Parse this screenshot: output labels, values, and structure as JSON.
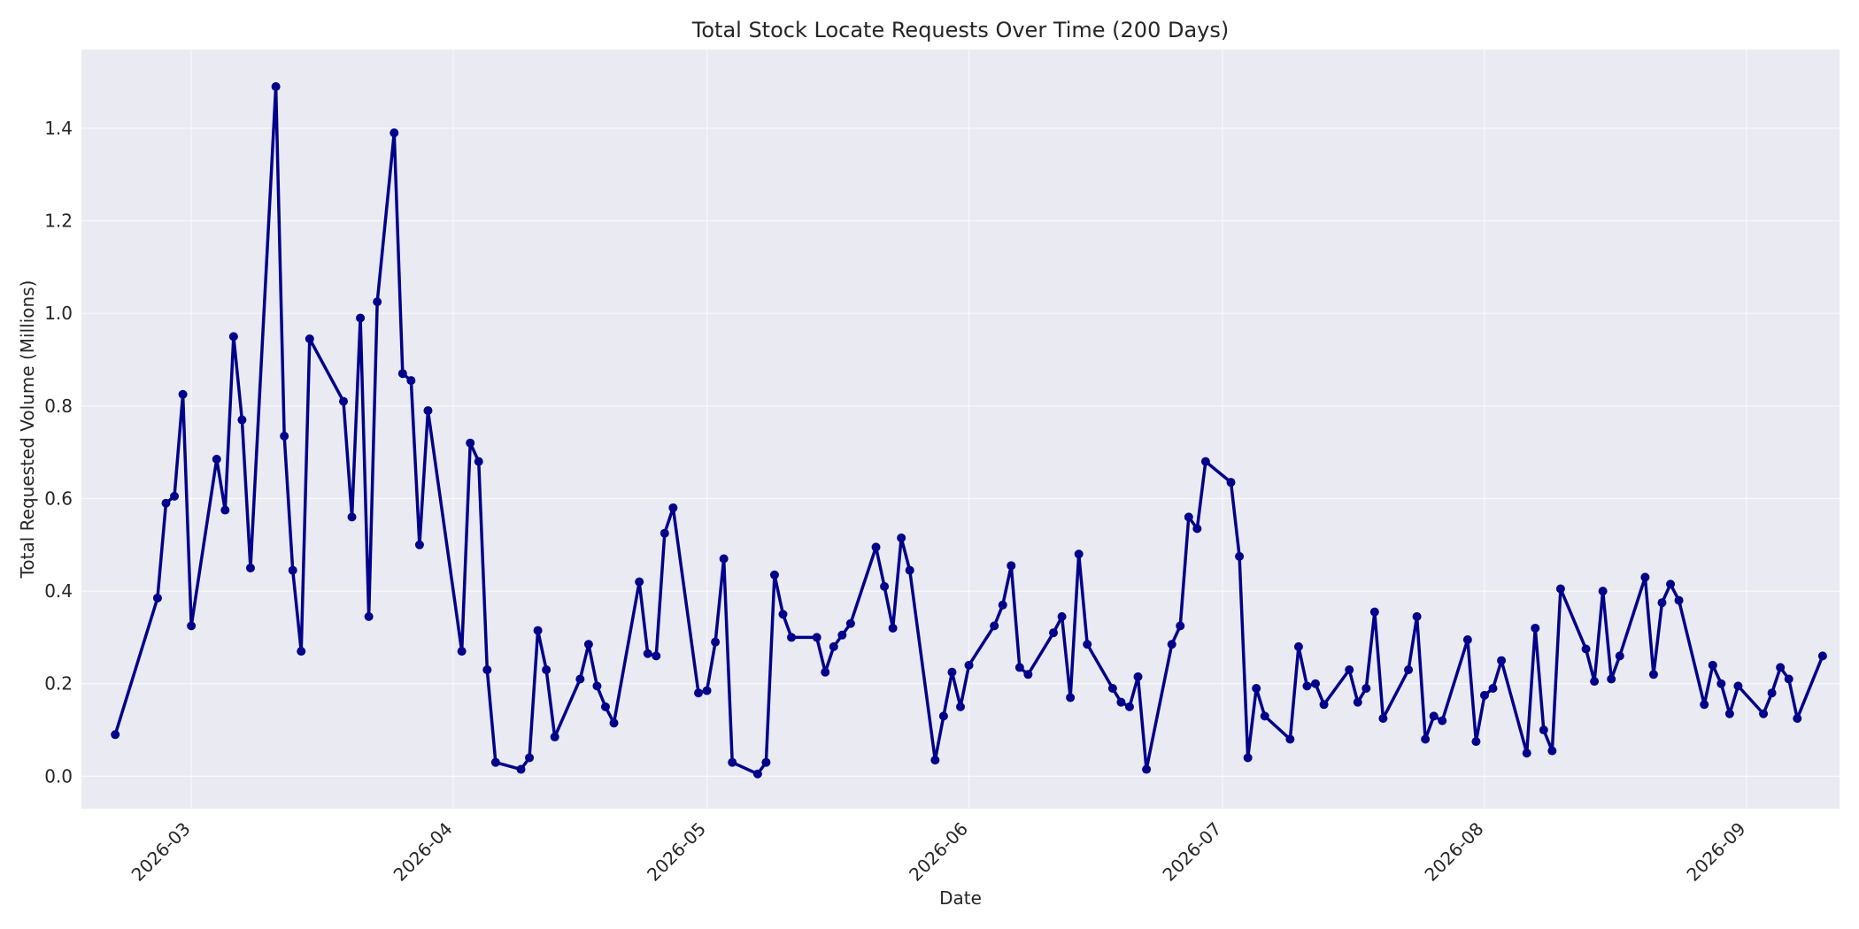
{
  "chart_data": {
    "type": "line",
    "title": "Total Stock Locate Requests Over Time (200 Days)",
    "xlabel": "Date",
    "ylabel": "Total Requested Volume (Millions)",
    "xlim": [
      "2026-02-16",
      "2026-09-12"
    ],
    "ylim": [
      -0.07,
      1.57
    ],
    "x_ticks": [
      "2026-03-01",
      "2026-04-01",
      "2026-05-01",
      "2026-06-01",
      "2026-07-01",
      "2026-08-01",
      "2026-09-01"
    ],
    "x_tick_labels": [
      "2026-03",
      "2026-04",
      "2026-05",
      "2026-06",
      "2026-07",
      "2026-08",
      "2026-09"
    ],
    "y_ticks": [
      0.0,
      0.2,
      0.4,
      0.6,
      0.8,
      1.0,
      1.2,
      1.4
    ],
    "y_tick_labels": [
      "0.0",
      "0.2",
      "0.4",
      "0.6",
      "0.8",
      "1.0",
      "1.2",
      "1.4"
    ],
    "grid": true,
    "colors": {
      "line": "#00008b",
      "plot_bg": "#eaeaf2",
      "grid": "#ffffff"
    },
    "series": [
      {
        "x": [
          "2026-02-20",
          "2026-02-25",
          "2026-02-26",
          "2026-02-27",
          "2026-02-28",
          "2026-03-01",
          "2026-03-04",
          "2026-03-05",
          "2026-03-06",
          "2026-03-07",
          "2026-03-08",
          "2026-03-11",
          "2026-03-12",
          "2026-03-13",
          "2026-03-14",
          "2026-03-15",
          "2026-03-19",
          "2026-03-20",
          "2026-03-21",
          "2026-03-22",
          "2026-03-23",
          "2026-03-25",
          "2026-03-26",
          "2026-03-27",
          "2026-03-28",
          "2026-03-29",
          "2026-04-02",
          "2026-04-03",
          "2026-04-04",
          "2026-04-05",
          "2026-04-06",
          "2026-04-09",
          "2026-04-10",
          "2026-04-11",
          "2026-04-12",
          "2026-04-13",
          "2026-04-16",
          "2026-04-17",
          "2026-04-18",
          "2026-04-19",
          "2026-04-20",
          "2026-04-23",
          "2026-04-24",
          "2026-04-25",
          "2026-04-26",
          "2026-04-27",
          "2026-04-30",
          "2026-05-01",
          "2026-05-02",
          "2026-05-03",
          "2026-05-04",
          "2026-05-07",
          "2026-05-08",
          "2026-05-09",
          "2026-05-10",
          "2026-05-11",
          "2026-05-14",
          "2026-05-15",
          "2026-05-16",
          "2026-05-17",
          "2026-05-18",
          "2026-05-21",
          "2026-05-22",
          "2026-05-23",
          "2026-05-24",
          "2026-05-25",
          "2026-05-28",
          "2026-05-29",
          "2026-05-30",
          "2026-05-31",
          "2026-06-01",
          "2026-06-04",
          "2026-06-05",
          "2026-06-06",
          "2026-06-07",
          "2026-06-08",
          "2026-06-11",
          "2026-06-12",
          "2026-06-13",
          "2026-06-14",
          "2026-06-15",
          "2026-06-18",
          "2026-06-19",
          "2026-06-20",
          "2026-06-21",
          "2026-06-22",
          "2026-06-25",
          "2026-06-26",
          "2026-06-27",
          "2026-06-28",
          "2026-06-29",
          "2026-07-02",
          "2026-07-03",
          "2026-07-04",
          "2026-07-05",
          "2026-07-06",
          "2026-07-09",
          "2026-07-10",
          "2026-07-11",
          "2026-07-12",
          "2026-07-13",
          "2026-07-16",
          "2026-07-17",
          "2026-07-18",
          "2026-07-19",
          "2026-07-20",
          "2026-07-23",
          "2026-07-24",
          "2026-07-25",
          "2026-07-26",
          "2026-07-27",
          "2026-07-30",
          "2026-07-31",
          "2026-08-01",
          "2026-08-02",
          "2026-08-03",
          "2026-08-06",
          "2026-08-07",
          "2026-08-08",
          "2026-08-09",
          "2026-08-10",
          "2026-08-13",
          "2026-08-14",
          "2026-08-15",
          "2026-08-16",
          "2026-08-17",
          "2026-08-20",
          "2026-08-21",
          "2026-08-22",
          "2026-08-23",
          "2026-08-24",
          "2026-08-27",
          "2026-08-28",
          "2026-08-29",
          "2026-08-30",
          "2026-08-31",
          "2026-09-03",
          "2026-09-04",
          "2026-09-05",
          "2026-09-06",
          "2026-09-07",
          "2026-09-10"
        ],
        "values": [
          0.09,
          0.385,
          0.59,
          0.605,
          0.825,
          0.325,
          0.685,
          0.575,
          0.95,
          0.77,
          0.45,
          1.49,
          0.735,
          0.445,
          0.27,
          0.945,
          0.81,
          0.56,
          0.99,
          0.345,
          1.025,
          1.39,
          0.87,
          0.855,
          0.5,
          0.79,
          0.27,
          0.72,
          0.68,
          0.23,
          0.03,
          0.015,
          0.04,
          0.315,
          0.23,
          0.085,
          0.21,
          0.285,
          0.195,
          0.15,
          0.115,
          0.42,
          0.265,
          0.26,
          0.525,
          0.58,
          0.18,
          0.185,
          0.29,
          0.47,
          0.03,
          0.005,
          0.03,
          0.435,
          0.35,
          0.3,
          0.3,
          0.225,
          0.28,
          0.305,
          0.33,
          0.495,
          0.41,
          0.32,
          0.515,
          0.445,
          0.035,
          0.13,
          0.225,
          0.15,
          0.24,
          0.325,
          0.37,
          0.455,
          0.235,
          0.22,
          0.31,
          0.345,
          0.17,
          0.48,
          0.285,
          0.19,
          0.16,
          0.15,
          0.215,
          0.015,
          0.285,
          0.325,
          0.56,
          0.535,
          0.68,
          0.635,
          0.475,
          0.04,
          0.19,
          0.13,
          0.08,
          0.28,
          0.195,
          0.2,
          0.155,
          0.23,
          0.16,
          0.19,
          0.355,
          0.125,
          0.23,
          0.345,
          0.08,
          0.13,
          0.12,
          0.295,
          0.075,
          0.175,
          0.19,
          0.25,
          0.05,
          0.32,
          0.1,
          0.055,
          0.405,
          0.275,
          0.205,
          0.4,
          0.21,
          0.26,
          0.43,
          0.22,
          0.375,
          0.415,
          0.38,
          0.155,
          0.24,
          0.2,
          0.135,
          0.195,
          0.135,
          0.18,
          0.235,
          0.21,
          0.125,
          0.26
        ]
      }
    ]
  }
}
